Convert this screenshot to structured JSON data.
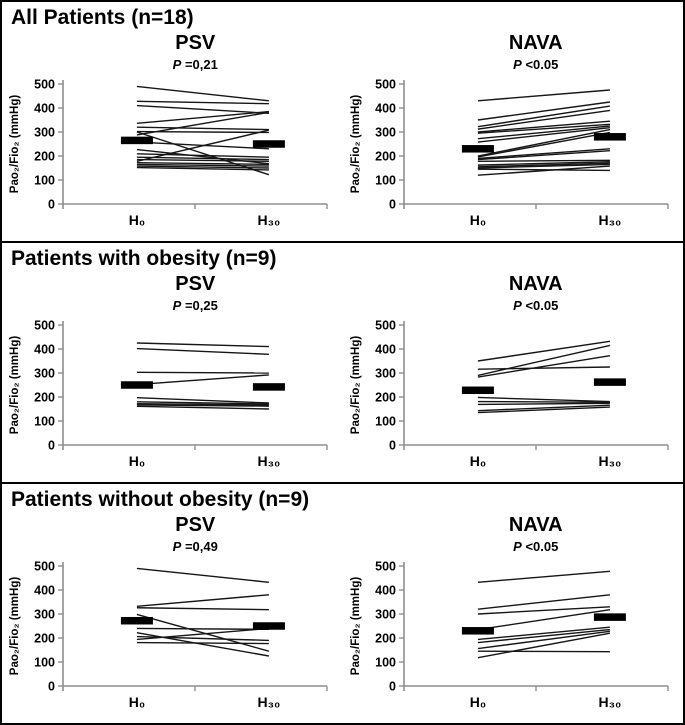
{
  "figure": {
    "sections": [
      {
        "heading": "All Patients (n=18)"
      },
      {
        "heading": "Patients with obesity (n=9)"
      },
      {
        "heading": "Patients without obesity (n=9)"
      }
    ]
  },
  "axis": {
    "ylabel": "Pao₂/Fio₂ (mmHg)",
    "yticks": [
      0,
      100,
      200,
      300,
      400,
      500
    ],
    "ylim": [
      0,
      500
    ],
    "x_categories": [
      "H₀",
      "H₃₀"
    ]
  },
  "colors": {
    "background": "#ffffff",
    "border": "#000000",
    "text": "#000000",
    "data_line": "#161616",
    "axis_line": "#8e8e8e",
    "mean_bar": "#000000"
  },
  "chart_data": [
    {
      "type": "line",
      "section": "All Patients (n=18)",
      "title": "PSV",
      "p_symbol": "P",
      "p_text": " =0,21",
      "x": [
        "H₀",
        "H₃₀"
      ],
      "ylabel": "Pao₂/Fio₂ (mmHg)",
      "ylim": [
        0,
        500
      ],
      "legend": "none",
      "grid": false,
      "series": [
        {
          "name": "p1",
          "values": [
            490,
            430
          ]
        },
        {
          "name": "p2",
          "values": [
            428,
            418
          ]
        },
        {
          "name": "p3",
          "values": [
            410,
            378
          ]
        },
        {
          "name": "p4",
          "values": [
            336,
            385
          ]
        },
        {
          "name": "p5",
          "values": [
            320,
            310
          ]
        },
        {
          "name": "p6",
          "values": [
            302,
            298
          ]
        },
        {
          "name": "p7",
          "values": [
            300,
            122
          ]
        },
        {
          "name": "p8",
          "values": [
            288,
            382
          ]
        },
        {
          "name": "p9",
          "values": [
            258,
            230
          ]
        },
        {
          "name": "p10",
          "values": [
            227,
            168
          ]
        },
        {
          "name": "p11",
          "values": [
            209,
            195
          ]
        },
        {
          "name": "p12",
          "values": [
            195,
            185
          ]
        },
        {
          "name": "p13",
          "values": [
            185,
            178
          ]
        },
        {
          "name": "p14",
          "values": [
            178,
            308
          ]
        },
        {
          "name": "p15",
          "values": [
            172,
            165
          ]
        },
        {
          "name": "p16",
          "values": [
            165,
            158
          ]
        },
        {
          "name": "p17",
          "values": [
            158,
            150
          ]
        },
        {
          "name": "p18",
          "values": [
            152,
            142
          ]
        }
      ],
      "means": {
        "H0": 265,
        "H30": 250
      }
    },
    {
      "type": "line",
      "section": "All Patients (n=18)",
      "title": "NAVA",
      "p_symbol": "P",
      "p_text": " <0.05",
      "x": [
        "H₀",
        "H₃₀"
      ],
      "ylabel": "Pao₂/Fio₂ (mmHg)",
      "ylim": [
        0,
        500
      ],
      "legend": "none",
      "grid": false,
      "series": [
        {
          "name": "p1",
          "values": [
            430,
            475
          ]
        },
        {
          "name": "p2",
          "values": [
            350,
            425
          ]
        },
        {
          "name": "p3",
          "values": [
            322,
            408
          ]
        },
        {
          "name": "p4",
          "values": [
            312,
            390
          ]
        },
        {
          "name": "p5",
          "values": [
            300,
            345
          ]
        },
        {
          "name": "p6",
          "values": [
            295,
            332
          ]
        },
        {
          "name": "p7",
          "values": [
            272,
            325
          ]
        },
        {
          "name": "p8",
          "values": [
            258,
            318
          ]
        },
        {
          "name": "p9",
          "values": [
            200,
            310
          ]
        },
        {
          "name": "p10",
          "values": [
            196,
            298
          ]
        },
        {
          "name": "p11",
          "values": [
            190,
            230
          ]
        },
        {
          "name": "p12",
          "values": [
            185,
            222
          ]
        },
        {
          "name": "p13",
          "values": [
            178,
            182
          ]
        },
        {
          "name": "p14",
          "values": [
            162,
            176
          ]
        },
        {
          "name": "p15",
          "values": [
            155,
            170
          ]
        },
        {
          "name": "p16",
          "values": [
            150,
            165
          ]
        },
        {
          "name": "p17",
          "values": [
            145,
            140
          ]
        },
        {
          "name": "p18",
          "values": [
            120,
            158
          ]
        }
      ],
      "means": {
        "H0": 230,
        "H30": 280
      }
    },
    {
      "type": "line",
      "section": "Patients with obesity (n=9)",
      "title": "PSV",
      "p_symbol": "P",
      "p_text": " =0,25",
      "x": [
        "H₀",
        "H₃₀"
      ],
      "ylabel": "Pao₂/Fio₂ (mmHg)",
      "ylim": [
        0,
        500
      ],
      "legend": "none",
      "grid": false,
      "series": [
        {
          "name": "p1",
          "values": [
            425,
            410
          ]
        },
        {
          "name": "p2",
          "values": [
            402,
            378
          ]
        },
        {
          "name": "p3",
          "values": [
            303,
            300
          ]
        },
        {
          "name": "p4",
          "values": [
            252,
            292
          ]
        },
        {
          "name": "p5",
          "values": [
            197,
            175
          ]
        },
        {
          "name": "p6",
          "values": [
            180,
            171
          ]
        },
        {
          "name": "p7",
          "values": [
            172,
            167
          ]
        },
        {
          "name": "p8",
          "values": [
            167,
            162
          ]
        },
        {
          "name": "p9",
          "values": [
            161,
            150
          ]
        }
      ],
      "means": {
        "H0": 250,
        "H30": 242
      }
    },
    {
      "type": "line",
      "section": "Patients with obesity (n=9)",
      "title": "NAVA",
      "p_symbol": "P",
      "p_text": " <0.05",
      "x": [
        "H₀",
        "H₃₀"
      ],
      "ylabel": "Pao₂/Fio₂ (mmHg)",
      "ylim": [
        0,
        500
      ],
      "legend": "none",
      "grid": false,
      "series": [
        {
          "name": "p1",
          "values": [
            350,
            432
          ]
        },
        {
          "name": "p2",
          "values": [
            316,
            325
          ]
        },
        {
          "name": "p3",
          "values": [
            290,
            415
          ]
        },
        {
          "name": "p4",
          "values": [
            283,
            372
          ]
        },
        {
          "name": "p5",
          "values": [
            198,
            181
          ]
        },
        {
          "name": "p6",
          "values": [
            181,
            178
          ]
        },
        {
          "name": "p7",
          "values": [
            169,
            174
          ]
        },
        {
          "name": "p8",
          "values": [
            143,
            166
          ]
        },
        {
          "name": "p9",
          "values": [
            135,
            158
          ]
        }
      ],
      "means": {
        "H0": 228,
        "H30": 262
      }
    },
    {
      "type": "line",
      "section": "Patients without obesity (n=9)",
      "title": "PSV",
      "p_symbol": "P",
      "p_text": " =0,49",
      "x": [
        "H₀",
        "H₃₀"
      ],
      "ylabel": "Pao₂/Fio₂ (mmHg)",
      "ylim": [
        0,
        500
      ],
      "legend": "none",
      "grid": false,
      "series": [
        {
          "name": "p1",
          "values": [
            490,
            432
          ]
        },
        {
          "name": "p2",
          "values": [
            332,
            380
          ]
        },
        {
          "name": "p3",
          "values": [
            326,
            318
          ]
        },
        {
          "name": "p4",
          "values": [
            298,
            145
          ]
        },
        {
          "name": "p5",
          "values": [
            240,
            236
          ]
        },
        {
          "name": "p6",
          "values": [
            222,
            125
          ]
        },
        {
          "name": "p7",
          "values": [
            194,
            240
          ]
        },
        {
          "name": "p8",
          "values": [
            206,
            190
          ]
        },
        {
          "name": "p9",
          "values": [
            181,
            177
          ]
        }
      ],
      "means": {
        "H0": 272,
        "H30": 250
      }
    },
    {
      "type": "line",
      "section": "Patients without obesity (n=9)",
      "title": "NAVA",
      "p_symbol": "P",
      "p_text": " <0.05",
      "x": [
        "H₀",
        "H₃₀"
      ],
      "ylabel": "Pao₂/Fio₂ (mmHg)",
      "ylim": [
        0,
        500
      ],
      "legend": "none",
      "grid": false,
      "series": [
        {
          "name": "p1",
          "values": [
            432,
            478
          ]
        },
        {
          "name": "p2",
          "values": [
            320,
            380
          ]
        },
        {
          "name": "p3",
          "values": [
            300,
            330
          ]
        },
        {
          "name": "p4",
          "values": [
            235,
            318
          ]
        },
        {
          "name": "p5",
          "values": [
            194,
            245
          ]
        },
        {
          "name": "p6",
          "values": [
            181,
            235
          ]
        },
        {
          "name": "p7",
          "values": [
            156,
            228
          ]
        },
        {
          "name": "p8",
          "values": [
            145,
            143
          ]
        },
        {
          "name": "p9",
          "values": [
            118,
            220
          ]
        }
      ],
      "means": {
        "H0": 230,
        "H30": 287
      }
    }
  ]
}
